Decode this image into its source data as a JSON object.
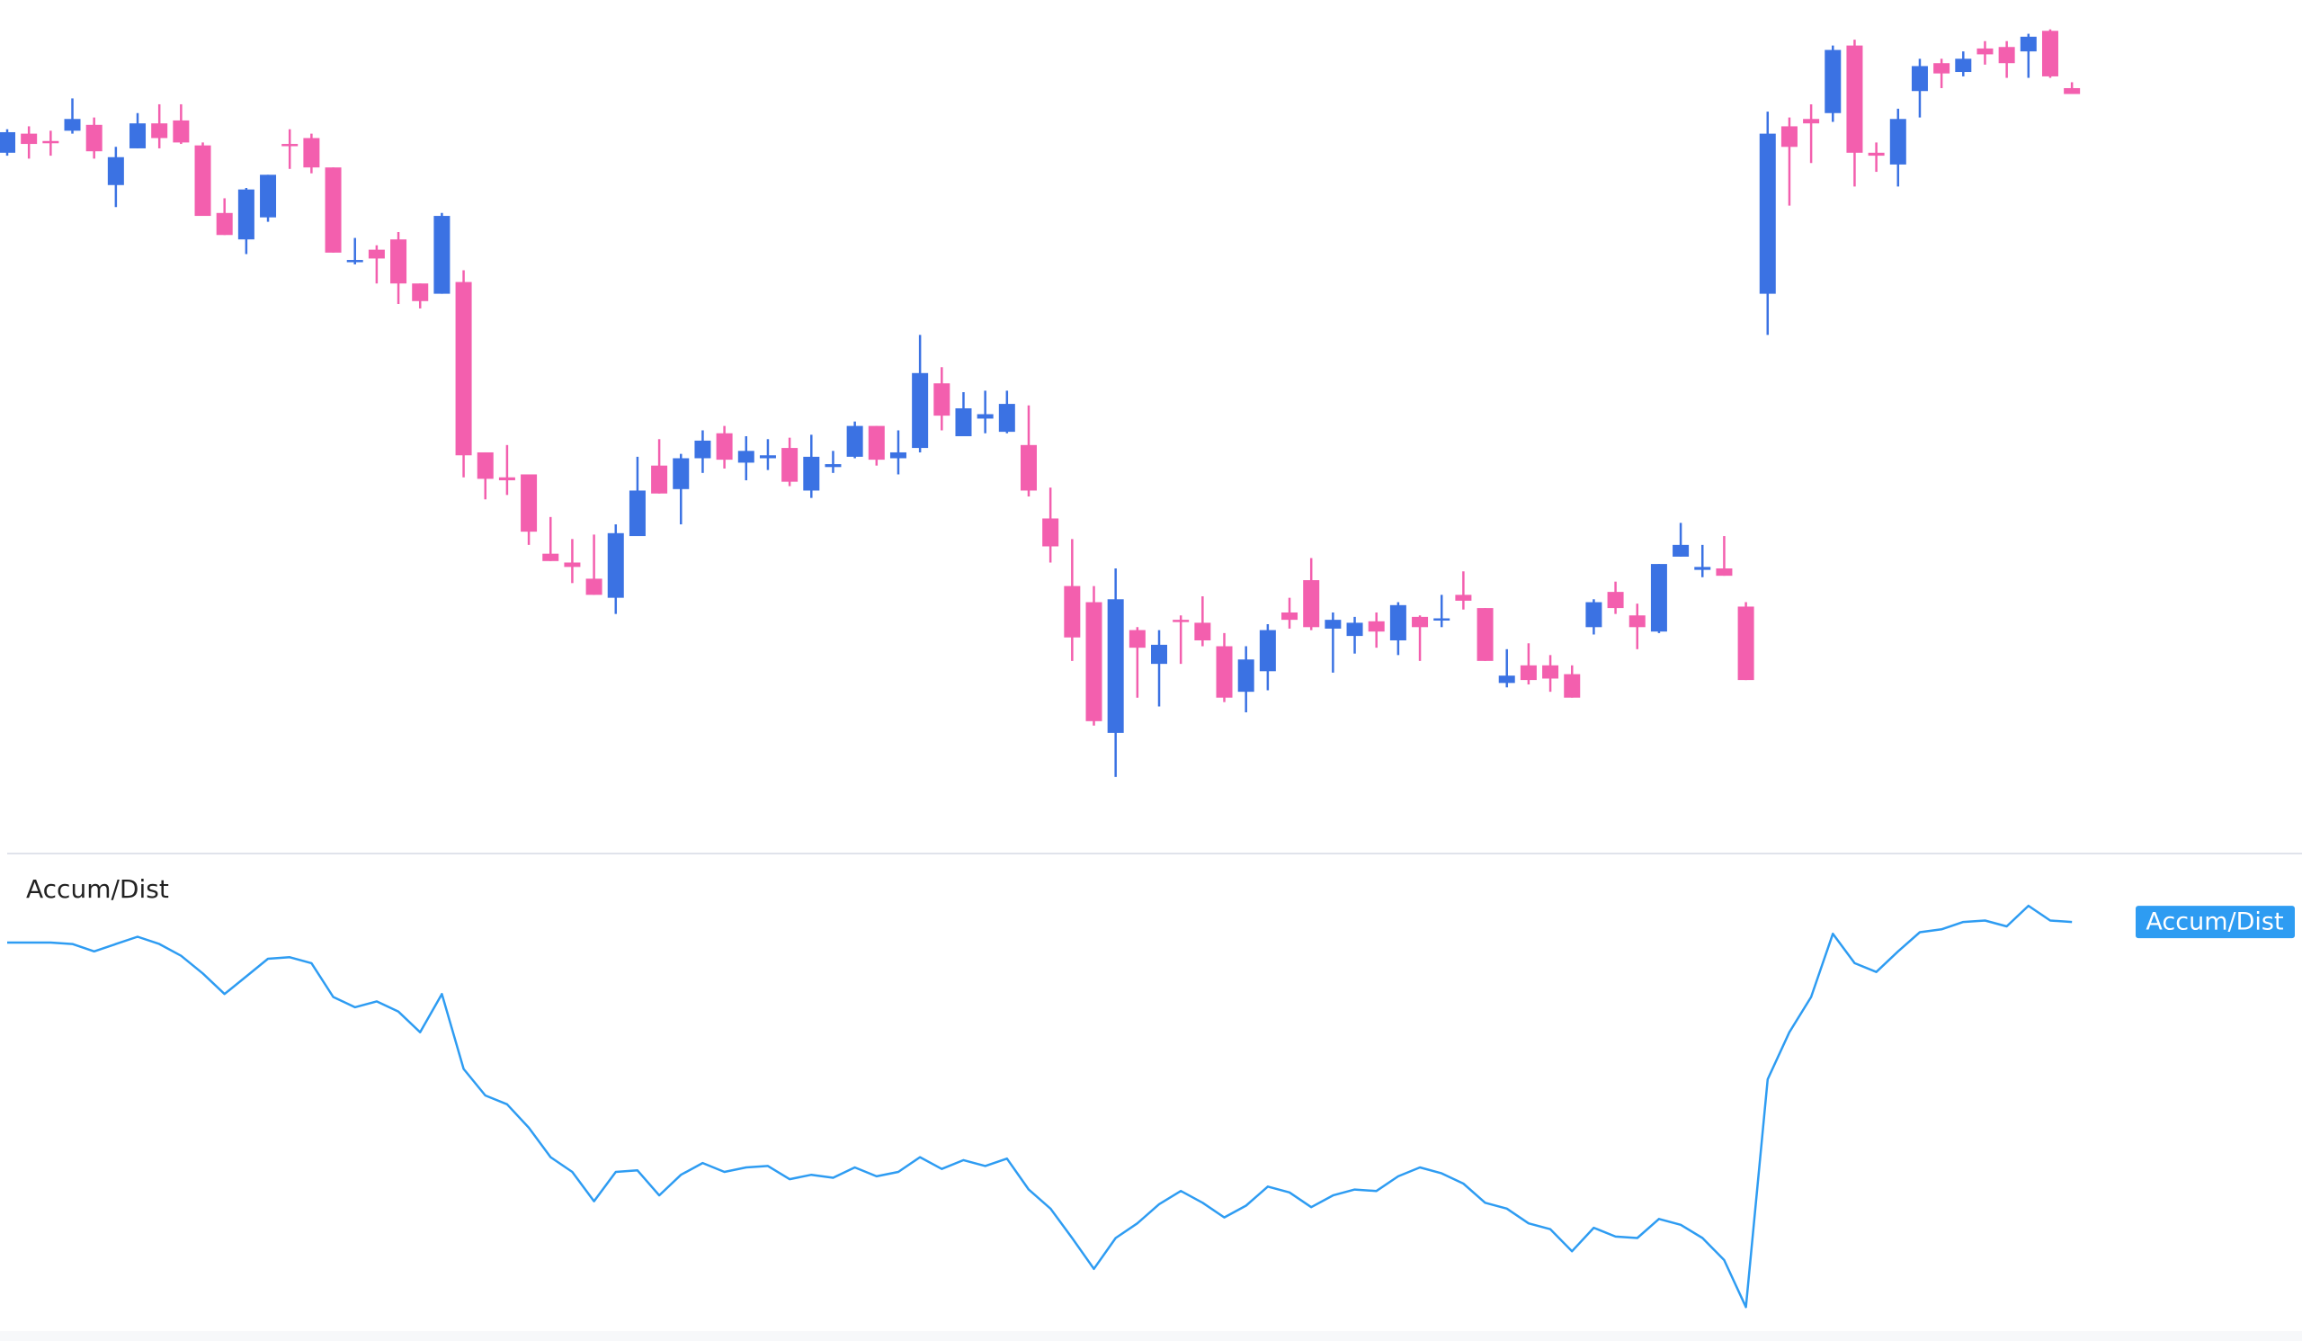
{
  "chart_data": {
    "type": "candlestick",
    "ylim": [
      0,
      575
    ],
    "up_color": "#3b72e3",
    "down_color": "#f35fae",
    "open": [
      471,
      484,
      479,
      486,
      490,
      449,
      474,
      491,
      493,
      476,
      430,
      412,
      427,
      477,
      481,
      461,
      397,
      405,
      412,
      382,
      375,
      383,
      267,
      250,
      252,
      198,
      192,
      181,
      168,
      210,
      258,
      242,
      263,
      280,
      260,
      263,
      270,
      241,
      257,
      264,
      285,
      263,
      270,
      314,
      278,
      290,
      281,
      272,
      222,
      176,
      165,
      76,
      146,
      123,
      153,
      151,
      135,
      104,
      118,
      158,
      180,
      147,
      142,
      152,
      139,
      155,
      153,
      170,
      161,
      110,
      122,
      122,
      116,
      148,
      172,
      156,
      145,
      196,
      187,
      188,
      162,
      375,
      489,
      494,
      498,
      544,
      471,
      463,
      513,
      532,
      526,
      542,
      543,
      540,
      554,
      515
    ],
    "high": [
      487,
      489,
      486,
      508,
      495,
      475,
      498,
      504,
      504,
      478,
      440,
      447,
      456,
      487,
      484,
      461,
      413,
      408,
      417,
      382,
      430,
      391,
      267,
      272,
      252,
      223,
      208,
      211,
      218,
      264,
      276,
      266,
      282,
      285,
      278,
      276,
      277,
      279,
      268,
      288,
      285,
      282,
      347,
      325,
      308,
      309,
      309,
      299,
      243,
      208,
      176,
      188,
      148,
      146,
      156,
      169,
      144,
      135,
      150,
      168,
      195,
      158,
      155,
      158,
      165,
      156,
      170,
      186,
      161,
      133,
      137,
      129,
      122,
      167,
      179,
      164,
      191,
      219,
      204,
      210,
      165,
      499,
      495,
      504,
      544,
      548,
      478,
      501,
      535,
      535,
      540,
      547,
      547,
      552,
      555,
      519
    ],
    "low": [
      469,
      467,
      469,
      484,
      467,
      434,
      474,
      474,
      477,
      428,
      415,
      402,
      424,
      460,
      457,
      403,
      395,
      382,
      368,
      365,
      375,
      250,
      235,
      238,
      204,
      193,
      178,
      170,
      157,
      210,
      239,
      218,
      253,
      256,
      248,
      255,
      244,
      236,
      253,
      263,
      258,
      252,
      267,
      282,
      278,
      280,
      280,
      237,
      192,
      125,
      81,
      46,
      100,
      94,
      123,
      135,
      97,
      90,
      105,
      147,
      146,
      117,
      130,
      134,
      129,
      125,
      148,
      160,
      125,
      107,
      109,
      104,
      100,
      143,
      157,
      133,
      144,
      196,
      182,
      183,
      112,
      347,
      435,
      464,
      492,
      448,
      458,
      448,
      495,
      515,
      523,
      531,
      522,
      522,
      522,
      511
    ],
    "close": [
      485,
      477,
      478,
      494,
      472,
      468,
      491,
      481,
      478,
      428,
      415,
      446,
      456,
      476,
      461,
      403,
      398,
      399,
      382,
      370,
      428,
      265,
      249,
      248,
      213,
      193,
      189,
      170,
      212,
      241,
      239,
      263,
      275,
      262,
      268,
      265,
      247,
      264,
      259,
      285,
      262,
      267,
      321,
      292,
      297,
      293,
      300,
      241,
      203,
      141,
      84,
      167,
      134,
      136,
      152,
      139,
      100,
      126,
      146,
      153,
      148,
      153,
      151,
      145,
      163,
      148,
      154,
      166,
      125,
      115,
      112,
      113,
      100,
      165,
      161,
      148,
      191,
      204,
      189,
      183,
      112,
      484,
      475,
      491,
      541,
      471,
      469,
      494,
      530,
      525,
      535,
      538,
      532,
      550,
      523,
      511
    ],
    "indicator": {
      "type": "line",
      "name": "Accum/Dist",
      "color": "#2e9cf2",
      "ylim": [
        0,
        320
      ],
      "values": [
        268,
        268,
        268,
        267,
        262,
        267,
        272,
        267,
        259,
        247,
        233,
        245,
        257,
        258,
        254,
        231,
        224,
        228,
        221,
        207,
        233,
        182,
        164,
        158,
        142,
        122,
        112,
        92,
        112,
        113,
        96,
        110,
        118,
        112,
        115,
        116,
        107,
        110,
        108,
        115,
        109,
        112,
        122,
        114,
        120,
        116,
        121,
        100,
        87,
        67,
        46,
        67,
        77,
        90,
        99,
        91,
        81,
        89,
        102,
        98,
        88,
        96,
        100,
        99,
        109,
        115,
        111,
        104,
        91,
        87,
        77,
        73,
        58,
        74,
        68,
        67,
        80,
        76,
        67,
        52,
        20,
        175,
        207,
        231,
        274,
        254,
        248,
        262,
        275,
        277,
        282,
        283,
        279,
        293,
        283,
        282
      ]
    }
  }
}
